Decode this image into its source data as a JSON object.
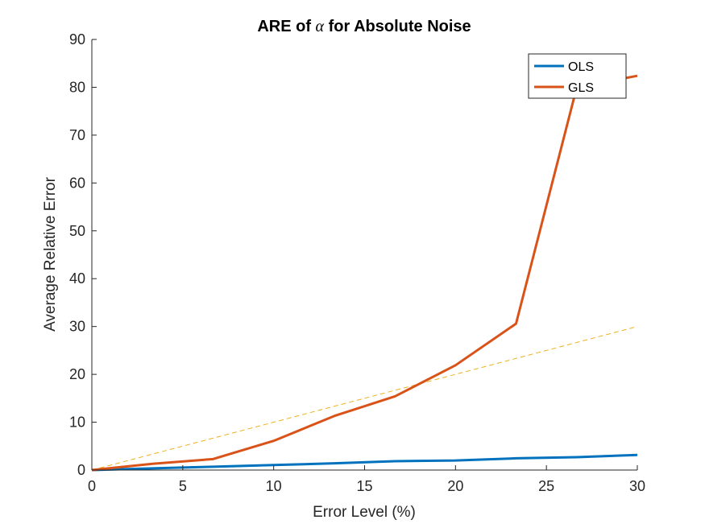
{
  "chart_data": {
    "type": "line",
    "title_prefix": "ARE of",
    "title_symbol": "α",
    "title_suffix": "for Absolute Noise",
    "xlabel": "Error Level (%)",
    "ylabel": "Average Relative Error",
    "xlim": [
      0,
      30
    ],
    "ylim": [
      0,
      90
    ],
    "xticks": [
      0,
      5,
      10,
      15,
      20,
      25,
      30
    ],
    "yticks": [
      0,
      10,
      20,
      30,
      40,
      50,
      60,
      70,
      80,
      90
    ],
    "grid": false,
    "legend_position": "top-right",
    "x": [
      0,
      3.33,
      6.67,
      10,
      13.33,
      16.67,
      20,
      23.33,
      26.67,
      30
    ],
    "series": [
      {
        "name": "OLS",
        "color": "#0072BD",
        "values": [
          0,
          0.35,
          0.7,
          1.05,
          1.4,
          1.85,
          2.0,
          2.45,
          2.7,
          3.15
        ]
      },
      {
        "name": "GLS",
        "color": "#D95319",
        "values": [
          0,
          1.3,
          2.3,
          6.1,
          11.3,
          15.4,
          21.9,
          30.6,
          80.0,
          82.4
        ]
      }
    ],
    "reference_line": {
      "color": "#EDB120",
      "x": [
        0,
        30
      ],
      "y": [
        0,
        30
      ]
    }
  }
}
